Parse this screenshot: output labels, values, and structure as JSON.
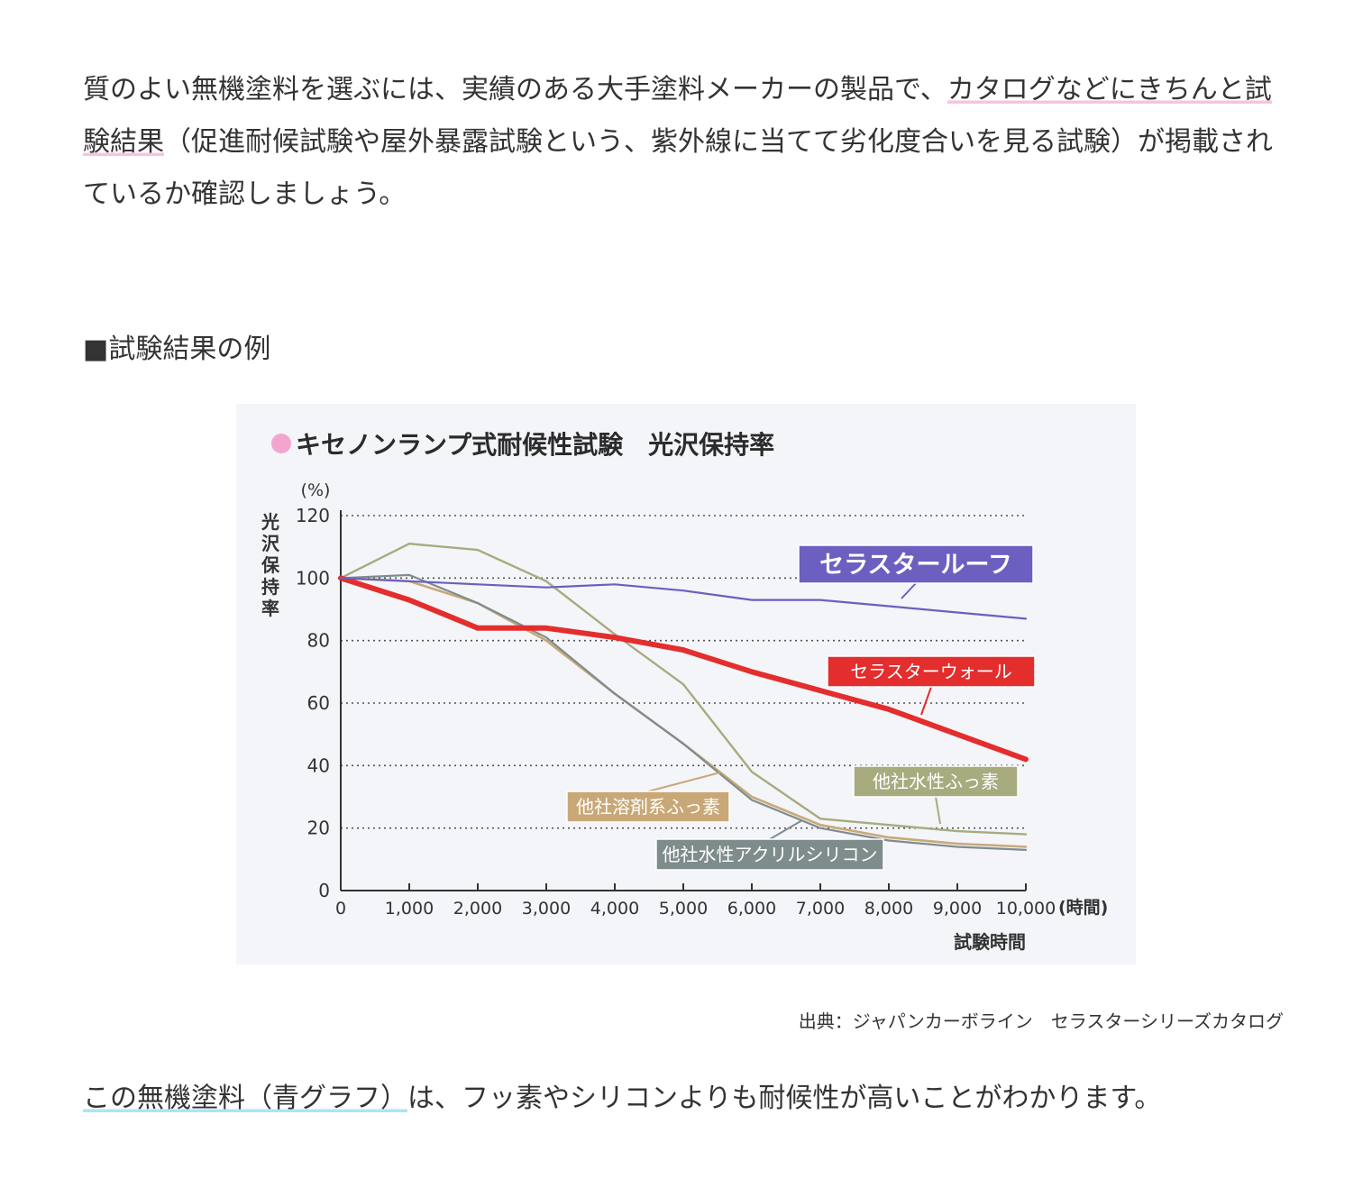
{
  "intro": {
    "part1": "質のよい無機塗料を選ぶには、実績のある大手塗料メーカーの製品で、",
    "highlight": "カタログなどにきちんと試験結果",
    "part2": "（促進耐候試験や屋外暴露試験という、紫外線に当てて劣化度合いを見る試験）が掲載されているか確認しましょう。"
  },
  "section_heading": "■試験結果の例",
  "figure_source": "出典：ジャパンカーボライン　セラスターシリーズカタログ",
  "conclusion": {
    "highlight": "この無機塗料（青グラフ）",
    "rest": "は、フッ素やシリコンよりも耐候性が高いことがわかります。"
  },
  "colors": {
    "title_dot": "#f2a6cf",
    "roof": "#6b5fc0",
    "wall": "#e42d2d",
    "solvent_fluoro": "#c9a878",
    "water_fluoro": "#a7ab7e",
    "acryl_silicon": "#7f8c8c"
  },
  "chart_data": {
    "type": "line",
    "title": "キセノンランプ式耐候性試験　光沢保持率",
    "ylabel": "光沢保持率",
    "yunit": "(%)",
    "xlabel": "試験時間",
    "xunit": "(時間)",
    "xlim": [
      0,
      10000
    ],
    "ylim": [
      0,
      120
    ],
    "xticks": [
      0,
      1000,
      2000,
      3000,
      4000,
      5000,
      6000,
      7000,
      8000,
      9000,
      10000
    ],
    "xtick_labels": [
      "0",
      "1,000",
      "2,000",
      "3,000",
      "4,000",
      "5,000",
      "6,000",
      "7,000",
      "8,000",
      "9,000",
      "10,000"
    ],
    "yticks": [
      0,
      20,
      40,
      60,
      80,
      100,
      120
    ],
    "grid": "horizontal dotted",
    "series": [
      {
        "name": "セラスタールーフ",
        "color": "#6b5fc0",
        "label_style": "box",
        "x": [
          0,
          1000,
          2000,
          3000,
          4000,
          5000,
          6000,
          7000,
          8000,
          9000,
          10000
        ],
        "y": [
          100,
          99,
          98,
          97,
          98,
          96,
          93,
          93,
          91,
          89,
          87
        ]
      },
      {
        "name": "セラスターウォール",
        "color": "#e42d2d",
        "label_style": "box",
        "x": [
          0,
          1000,
          2000,
          3000,
          4000,
          5000,
          6000,
          7000,
          8000,
          9000,
          10000
        ],
        "y": [
          100,
          93,
          84,
          84,
          81,
          77,
          70,
          64,
          58,
          50,
          42
        ]
      },
      {
        "name": "他社水性ふっ素",
        "color": "#a7ab7e",
        "label_style": "box",
        "x": [
          0,
          1000,
          2000,
          3000,
          4000,
          5000,
          6000,
          7000,
          8000,
          9000,
          10000
        ],
        "y": [
          100,
          111,
          109,
          99,
          82,
          66,
          38,
          23,
          21,
          19,
          18
        ]
      },
      {
        "name": "他社溶剤系ふっ素",
        "color": "#c9a878",
        "label_style": "box",
        "x": [
          0,
          1000,
          2000,
          3000,
          4000,
          5000,
          6000,
          7000,
          8000,
          9000,
          10000
        ],
        "y": [
          100,
          99,
          92,
          80,
          63,
          47,
          30,
          21,
          17,
          15,
          14
        ]
      },
      {
        "name": "他社水性アクリルシリコン",
        "color": "#7f8c8c",
        "label_style": "box",
        "x": [
          0,
          1000,
          2000,
          3000,
          4000,
          5000,
          6000,
          7000,
          8000,
          9000,
          10000
        ],
        "y": [
          100,
          101,
          92,
          81,
          63,
          47,
          29,
          20,
          16,
          14,
          13
        ]
      }
    ]
  }
}
